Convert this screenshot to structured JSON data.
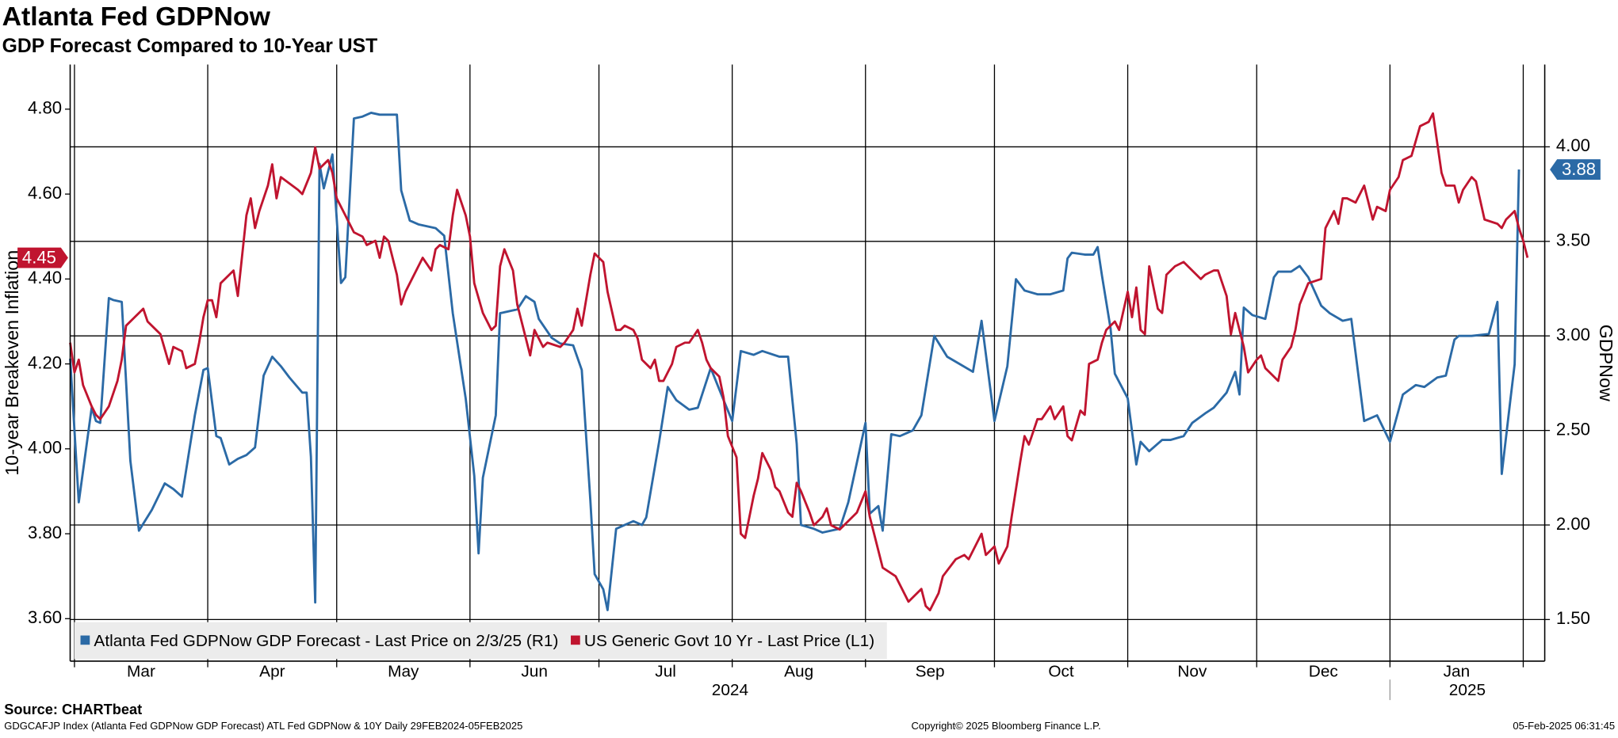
{
  "chart_data": {
    "type": "line",
    "title": "Atlanta Fed GDPNow",
    "subtitle": "GDP Forecast Compared to 10-Year UST",
    "y_label": "10-year Breakeven Inflation",
    "y2_label": "GDPNow",
    "source": "Source: CHARTbeat",
    "footer_left": "GDGCAFJP Index (Atlanta Fed GDPNow GDP Forecast) ATL Fed GDPNow & 10Y  Daily 29FEB2024-05FEB2025",
    "copyright": "Copyright© 2025 Bloomberg Finance L.P.",
    "timestamp": "05-Feb-2025 06:31:45",
    "xlim": [
      "2024-02-29",
      "2025-02-06"
    ],
    "xticks": [
      {
        "value": "2024-03-01",
        "label": "Mar"
      },
      {
        "value": "2024-04-01",
        "label": "Apr"
      },
      {
        "value": "2024-05-01",
        "label": "May"
      },
      {
        "value": "2024-06-01",
        "label": "Jun"
      },
      {
        "value": "2024-07-01",
        "label": "Jul"
      },
      {
        "value": "2024-08-01",
        "label": "Aug"
      },
      {
        "value": "2024-09-01",
        "label": "Sep"
      },
      {
        "value": "2024-10-01",
        "label": "Oct"
      },
      {
        "value": "2024-11-01",
        "label": "Nov"
      },
      {
        "value": "2024-12-01",
        "label": "Dec"
      },
      {
        "value": "2025-01-01",
        "label": "Jan"
      },
      {
        "value": "2025-02-01",
        "label": null
      }
    ],
    "year_ticks": [
      {
        "value": "2024-01-01",
        "label": "2024"
      },
      {
        "value": "2025-01-01",
        "label": "2025"
      }
    ],
    "ylim": [
      3.5,
      4.905
    ],
    "yticks": [
      {
        "value": 3.6,
        "label": "3.60"
      },
      {
        "value": 3.8,
        "label": "3.80"
      },
      {
        "value": 4.0,
        "label": "4.00"
      },
      {
        "value": 4.2,
        "label": "4.20"
      },
      {
        "value": 4.4,
        "label": "4.40"
      },
      {
        "value": 4.6,
        "label": "4.60"
      },
      {
        "value": 4.8,
        "label": "4.80"
      }
    ],
    "y2lim": [
      1.28,
      4.435
    ],
    "y2ticks": [
      {
        "value": 1.5,
        "label": "1.50"
      },
      {
        "value": 2.0,
        "label": "2.00"
      },
      {
        "value": 2.5,
        "label": "2.50"
      },
      {
        "value": 3.0,
        "label": "3.00"
      },
      {
        "value": 3.5,
        "label": "3.50"
      },
      {
        "value": 4.0,
        "label": "4.00"
      }
    ],
    "grid": "y2",
    "legend": "bottom-left",
    "series": [
      {
        "name": "Atlanta Fed GDPNow GDP Forecast - Last Price on 2/3/25 (R1)",
        "color": "#2b6aa6",
        "axis": "y2",
        "last_value_label": "3.88",
        "x": [
          "2024-02-29",
          "2024-03-02",
          "2024-03-05",
          "2024-03-06",
          "2024-03-07",
          "2024-03-09",
          "2024-03-10",
          "2024-03-12",
          "2024-03-14",
          "2024-03-16",
          "2024-03-19",
          "2024-03-22",
          "2024-03-24",
          "2024-03-26",
          "2024-03-29",
          "2024-03-31",
          "2024-04-01",
          "2024-04-03",
          "2024-04-04",
          "2024-04-06",
          "2024-04-08",
          "2024-04-10",
          "2024-04-12",
          "2024-04-14",
          "2024-04-16",
          "2024-04-18",
          "2024-04-20",
          "2024-04-23",
          "2024-04-24",
          "2024-04-25",
          "2024-04-26",
          "2024-04-27",
          "2024-04-28",
          "2024-04-30",
          "2024-05-02",
          "2024-05-03",
          "2024-05-05",
          "2024-05-07",
          "2024-05-09",
          "2024-05-11",
          "2024-05-15",
          "2024-05-16",
          "2024-05-18",
          "2024-05-20",
          "2024-05-22",
          "2024-05-24",
          "2024-05-26",
          "2024-05-28",
          "2024-05-31",
          "2024-06-02",
          "2024-06-03",
          "2024-06-04",
          "2024-06-07",
          "2024-06-08",
          "2024-06-12",
          "2024-06-14",
          "2024-06-16",
          "2024-06-17",
          "2024-06-20",
          "2024-06-22",
          "2024-06-25",
          "2024-06-27",
          "2024-06-29",
          "2024-06-30",
          "2024-07-02",
          "2024-07-03",
          "2024-07-05",
          "2024-07-07",
          "2024-07-09",
          "2024-07-11",
          "2024-07-12",
          "2024-07-15",
          "2024-07-17",
          "2024-07-19",
          "2024-07-22",
          "2024-07-24",
          "2024-07-27",
          "2024-07-30",
          "2024-08-01",
          "2024-08-03",
          "2024-08-06",
          "2024-08-08",
          "2024-08-12",
          "2024-08-14",
          "2024-08-16",
          "2024-08-17",
          "2024-08-20",
          "2024-08-22",
          "2024-08-24",
          "2024-08-26",
          "2024-08-28",
          "2024-09-01",
          "2024-09-02",
          "2024-09-04",
          "2024-09-05",
          "2024-09-07",
          "2024-09-09",
          "2024-09-12",
          "2024-09-14",
          "2024-09-17",
          "2024-09-20",
          "2024-09-23",
          "2024-09-26",
          "2024-09-28",
          "2024-10-01",
          "2024-10-04",
          "2024-10-06",
          "2024-10-08",
          "2024-10-11",
          "2024-10-14",
          "2024-10-17",
          "2024-10-18",
          "2024-10-19",
          "2024-10-22",
          "2024-10-24",
          "2024-10-25",
          "2024-10-26",
          "2024-10-28",
          "2024-10-29",
          "2024-11-01",
          "2024-11-03",
          "2024-11-04",
          "2024-11-06",
          "2024-11-09",
          "2024-11-11",
          "2024-11-14",
          "2024-11-16",
          "2024-11-19",
          "2024-11-21",
          "2024-11-24",
          "2024-11-26",
          "2024-11-27",
          "2024-11-28",
          "2024-11-30",
          "2024-12-03",
          "2024-12-05",
          "2024-12-06",
          "2024-12-09",
          "2024-12-11",
          "2024-12-13",
          "2024-12-16",
          "2024-12-18",
          "2024-12-21",
          "2024-12-23",
          "2024-12-26",
          "2024-12-29",
          "2025-01-01",
          "2025-01-04",
          "2025-01-07",
          "2025-01-09",
          "2025-01-12",
          "2025-01-14",
          "2025-01-16",
          "2025-01-17",
          "2025-01-20",
          "2025-01-24",
          "2025-01-26",
          "2025-01-27",
          "2025-01-29",
          "2025-01-30",
          "2025-01-31"
        ],
        "values": [
          2.88,
          2.12,
          2.62,
          2.55,
          2.54,
          3.2,
          3.19,
          3.18,
          2.34,
          1.97,
          2.08,
          2.22,
          2.19,
          2.15,
          2.58,
          2.82,
          2.83,
          2.47,
          2.46,
          2.32,
          2.35,
          2.37,
          2.41,
          2.79,
          2.89,
          2.84,
          2.78,
          2.7,
          2.7,
          2.36,
          1.59,
          3.91,
          3.78,
          3.96,
          3.28,
          3.31,
          4.15,
          4.16,
          4.18,
          4.17,
          4.17,
          3.77,
          3.61,
          3.59,
          3.58,
          3.57,
          3.53,
          3.12,
          2.67,
          2.26,
          1.85,
          2.25,
          2.58,
          3.12,
          3.14,
          3.21,
          3.18,
          3.09,
          2.99,
          2.96,
          2.95,
          2.82,
          2.13,
          1.74,
          1.66,
          1.55,
          1.98,
          2.0,
          2.02,
          2.0,
          2.04,
          2.44,
          2.73,
          2.66,
          2.61,
          2.62,
          2.83,
          2.66,
          2.55,
          2.92,
          2.9,
          2.92,
          2.89,
          2.89,
          2.43,
          2.0,
          1.98,
          1.96,
          1.97,
          1.98,
          2.12,
          2.54,
          2.06,
          2.1,
          1.97,
          2.48,
          2.47,
          2.5,
          2.58,
          3.0,
          2.89,
          2.85,
          2.81,
          3.08,
          2.55,
          2.84,
          3.3,
          3.24,
          3.22,
          3.22,
          3.24,
          3.41,
          3.44,
          3.43,
          3.43,
          3.47,
          3.32,
          3.04,
          2.8,
          2.67,
          2.32,
          2.44,
          2.39,
          2.45,
          2.45,
          2.47,
          2.54,
          2.59,
          2.62,
          2.7,
          2.81,
          2.69,
          3.15,
          3.11,
          3.09,
          3.31,
          3.34,
          3.34,
          3.37,
          3.31,
          3.16,
          3.12,
          3.08,
          3.09,
          2.55,
          2.58,
          2.44,
          2.69,
          2.74,
          2.73,
          2.78,
          2.79,
          2.98,
          3.0,
          3.0,
          3.01,
          3.18,
          2.27,
          2.66,
          2.85,
          3.88
        ]
      },
      {
        "name": "US Generic Govt 10 Yr - Last Price (L1)",
        "color": "#c0142f",
        "axis": "y",
        "last_value_label": "4.45",
        "x": [
          "2024-02-29",
          "2024-03-01",
          "2024-03-02",
          "2024-03-03",
          "2024-03-05",
          "2024-03-06",
          "2024-03-07",
          "2024-03-09",
          "2024-03-11",
          "2024-03-12",
          "2024-03-13",
          "2024-03-15",
          "2024-03-17",
          "2024-03-18",
          "2024-03-20",
          "2024-03-21",
          "2024-03-23",
          "2024-03-24",
          "2024-03-26",
          "2024-03-27",
          "2024-03-29",
          "2024-03-30",
          "2024-03-31",
          "2024-04-01",
          "2024-04-02",
          "2024-04-03",
          "2024-04-04",
          "2024-04-06",
          "2024-04-07",
          "2024-04-08",
          "2024-04-10",
          "2024-04-11",
          "2024-04-12",
          "2024-04-13",
          "2024-04-15",
          "2024-04-16",
          "2024-04-17",
          "2024-04-18",
          "2024-04-22",
          "2024-04-23",
          "2024-04-25",
          "2024-04-26",
          "2024-04-27",
          "2024-04-29",
          "2024-04-30",
          "2024-05-01",
          "2024-05-03",
          "2024-05-05",
          "2024-05-07",
          "2024-05-08",
          "2024-05-10",
          "2024-05-11",
          "2024-05-12",
          "2024-05-13",
          "2024-05-15",
          "2024-05-16",
          "2024-05-17",
          "2024-05-20",
          "2024-05-21",
          "2024-05-23",
          "2024-05-24",
          "2024-05-25",
          "2024-05-27",
          "2024-05-28",
          "2024-05-29",
          "2024-05-31",
          "2024-06-01",
          "2024-06-02",
          "2024-06-04",
          "2024-06-06",
          "2024-06-07",
          "2024-06-08",
          "2024-06-09",
          "2024-06-11",
          "2024-06-12",
          "2024-06-14",
          "2024-06-15",
          "2024-06-16",
          "2024-06-18",
          "2024-06-19",
          "2024-06-22",
          "2024-06-23",
          "2024-06-25",
          "2024-06-26",
          "2024-06-27",
          "2024-06-29",
          "2024-06-30",
          "2024-07-02",
          "2024-07-03",
          "2024-07-05",
          "2024-07-06",
          "2024-07-07",
          "2024-07-09",
          "2024-07-10",
          "2024-07-11",
          "2024-07-13",
          "2024-07-14",
          "2024-07-15",
          "2024-07-16",
          "2024-07-18",
          "2024-07-19",
          "2024-07-21",
          "2024-07-22",
          "2024-07-24",
          "2024-07-25",
          "2024-07-26",
          "2024-07-27",
          "2024-07-29",
          "2024-07-30",
          "2024-07-31",
          "2024-08-02",
          "2024-08-03",
          "2024-08-04",
          "2024-08-06",
          "2024-08-07",
          "2024-08-08",
          "2024-08-10",
          "2024-08-11",
          "2024-08-12",
          "2024-08-14",
          "2024-08-15",
          "2024-08-16",
          "2024-08-17",
          "2024-08-19",
          "2024-08-20",
          "2024-08-22",
          "2024-08-23",
          "2024-08-24",
          "2024-08-26",
          "2024-08-27",
          "2024-08-30",
          "2024-09-01",
          "2024-09-02",
          "2024-09-04",
          "2024-09-05",
          "2024-09-08",
          "2024-09-09",
          "2024-09-11",
          "2024-09-12",
          "2024-09-14",
          "2024-09-15",
          "2024-09-16",
          "2024-09-18",
          "2024-09-19",
          "2024-09-22",
          "2024-09-24",
          "2024-09-25",
          "2024-09-27",
          "2024-09-28",
          "2024-09-29",
          "2024-10-01",
          "2024-10-02",
          "2024-10-04",
          "2024-10-05",
          "2024-10-07",
          "2024-10-08",
          "2024-10-09",
          "2024-10-11",
          "2024-10-12",
          "2024-10-14",
          "2024-10-15",
          "2024-10-17",
          "2024-10-18",
          "2024-10-19",
          "2024-10-21",
          "2024-10-22",
          "2024-10-23",
          "2024-10-25",
          "2024-10-26",
          "2024-10-27",
          "2024-10-29",
          "2024-10-30",
          "2024-11-01",
          "2024-11-02",
          "2024-11-03",
          "2024-11-04",
          "2024-11-05",
          "2024-11-06",
          "2024-11-08",
          "2024-11-09",
          "2024-11-10",
          "2024-11-12",
          "2024-11-14",
          "2024-11-15",
          "2024-11-16",
          "2024-11-18",
          "2024-11-19",
          "2024-11-21",
          "2024-11-22",
          "2024-11-24",
          "2024-11-25",
          "2024-11-26",
          "2024-11-27",
          "2024-11-28",
          "2024-11-29",
          "2024-12-01",
          "2024-12-02",
          "2024-12-03",
          "2024-12-04",
          "2024-12-06",
          "2024-12-07",
          "2024-12-09",
          "2024-12-10",
          "2024-12-11",
          "2024-12-13",
          "2024-12-16",
          "2024-12-17",
          "2024-12-19",
          "2024-12-20",
          "2024-12-21",
          "2024-12-22",
          "2024-12-24",
          "2024-12-25",
          "2024-12-26",
          "2024-12-28",
          "2024-12-29",
          "2024-12-31",
          "2025-01-01",
          "2025-01-03",
          "2025-01-04",
          "2025-01-06",
          "2025-01-08",
          "2025-01-10",
          "2025-01-11",
          "2025-01-13",
          "2025-01-14",
          "2025-01-16",
          "2025-01-17",
          "2025-01-18",
          "2025-01-20",
          "2025-01-21",
          "2025-01-23",
          "2025-01-26",
          "2025-01-27",
          "2025-01-28",
          "2025-01-30",
          "2025-01-31",
          "2025-02-01",
          "2025-02-02"
        ],
        "values": [
          4.25,
          4.18,
          4.21,
          4.15,
          4.1,
          4.08,
          4.07,
          4.1,
          4.16,
          4.21,
          4.29,
          4.31,
          4.33,
          4.3,
          4.28,
          4.27,
          4.2,
          4.24,
          4.23,
          4.19,
          4.2,
          4.25,
          4.31,
          4.35,
          4.35,
          4.31,
          4.39,
          4.41,
          4.42,
          4.36,
          4.55,
          4.59,
          4.52,
          4.56,
          4.62,
          4.67,
          4.59,
          4.64,
          4.61,
          4.6,
          4.65,
          4.71,
          4.66,
          4.68,
          4.65,
          4.59,
          4.55,
          4.51,
          4.5,
          4.48,
          4.49,
          4.45,
          4.5,
          4.49,
          4.41,
          4.34,
          4.37,
          4.43,
          4.45,
          4.42,
          4.47,
          4.48,
          4.47,
          4.55,
          4.61,
          4.55,
          4.5,
          4.39,
          4.32,
          4.28,
          4.29,
          4.43,
          4.47,
          4.42,
          4.34,
          4.26,
          4.22,
          4.28,
          4.24,
          4.25,
          4.24,
          4.25,
          4.28,
          4.33,
          4.29,
          4.41,
          4.46,
          4.44,
          4.37,
          4.28,
          4.28,
          4.29,
          4.28,
          4.26,
          4.21,
          4.19,
          4.21,
          4.16,
          4.16,
          4.2,
          4.24,
          4.25,
          4.25,
          4.28,
          4.25,
          4.21,
          4.19,
          4.17,
          4.12,
          4.03,
          3.98,
          3.8,
          3.79,
          3.89,
          3.93,
          3.99,
          3.95,
          3.91,
          3.9,
          3.85,
          3.84,
          3.92,
          3.9,
          3.85,
          3.82,
          3.84,
          3.86,
          3.82,
          3.81,
          3.82,
          3.85,
          3.9,
          3.84,
          3.76,
          3.72,
          3.7,
          3.68,
          3.64,
          3.65,
          3.67,
          3.63,
          3.62,
          3.66,
          3.7,
          3.74,
          3.75,
          3.74,
          3.78,
          3.8,
          3.75,
          3.77,
          3.73,
          3.77,
          3.84,
          3.97,
          4.03,
          4.01,
          4.07,
          4.07,
          4.1,
          4.07,
          4.1,
          4.03,
          4.02,
          4.09,
          4.08,
          4.2,
          4.21,
          4.25,
          4.28,
          4.3,
          4.28,
          4.37,
          4.31,
          4.38,
          4.28,
          4.27,
          4.43,
          4.33,
          4.32,
          4.41,
          4.43,
          4.44,
          4.43,
          4.42,
          4.4,
          4.41,
          4.42,
          4.42,
          4.36,
          4.27,
          4.32,
          4.28,
          4.24,
          4.18,
          4.21,
          4.22,
          4.19,
          4.18,
          4.16,
          4.21,
          4.24,
          4.28,
          4.34,
          4.39,
          4.4,
          4.52,
          4.56,
          4.53,
          4.59,
          4.59,
          4.58,
          4.6,
          4.62,
          4.54,
          4.57,
          4.56,
          4.61,
          4.64,
          4.68,
          4.69,
          4.76,
          4.77,
          4.79,
          4.65,
          4.62,
          4.62,
          4.58,
          4.61,
          4.64,
          4.63,
          4.54,
          4.53,
          4.52,
          4.54,
          4.56,
          4.52,
          4.49,
          4.45
        ]
      }
    ]
  }
}
